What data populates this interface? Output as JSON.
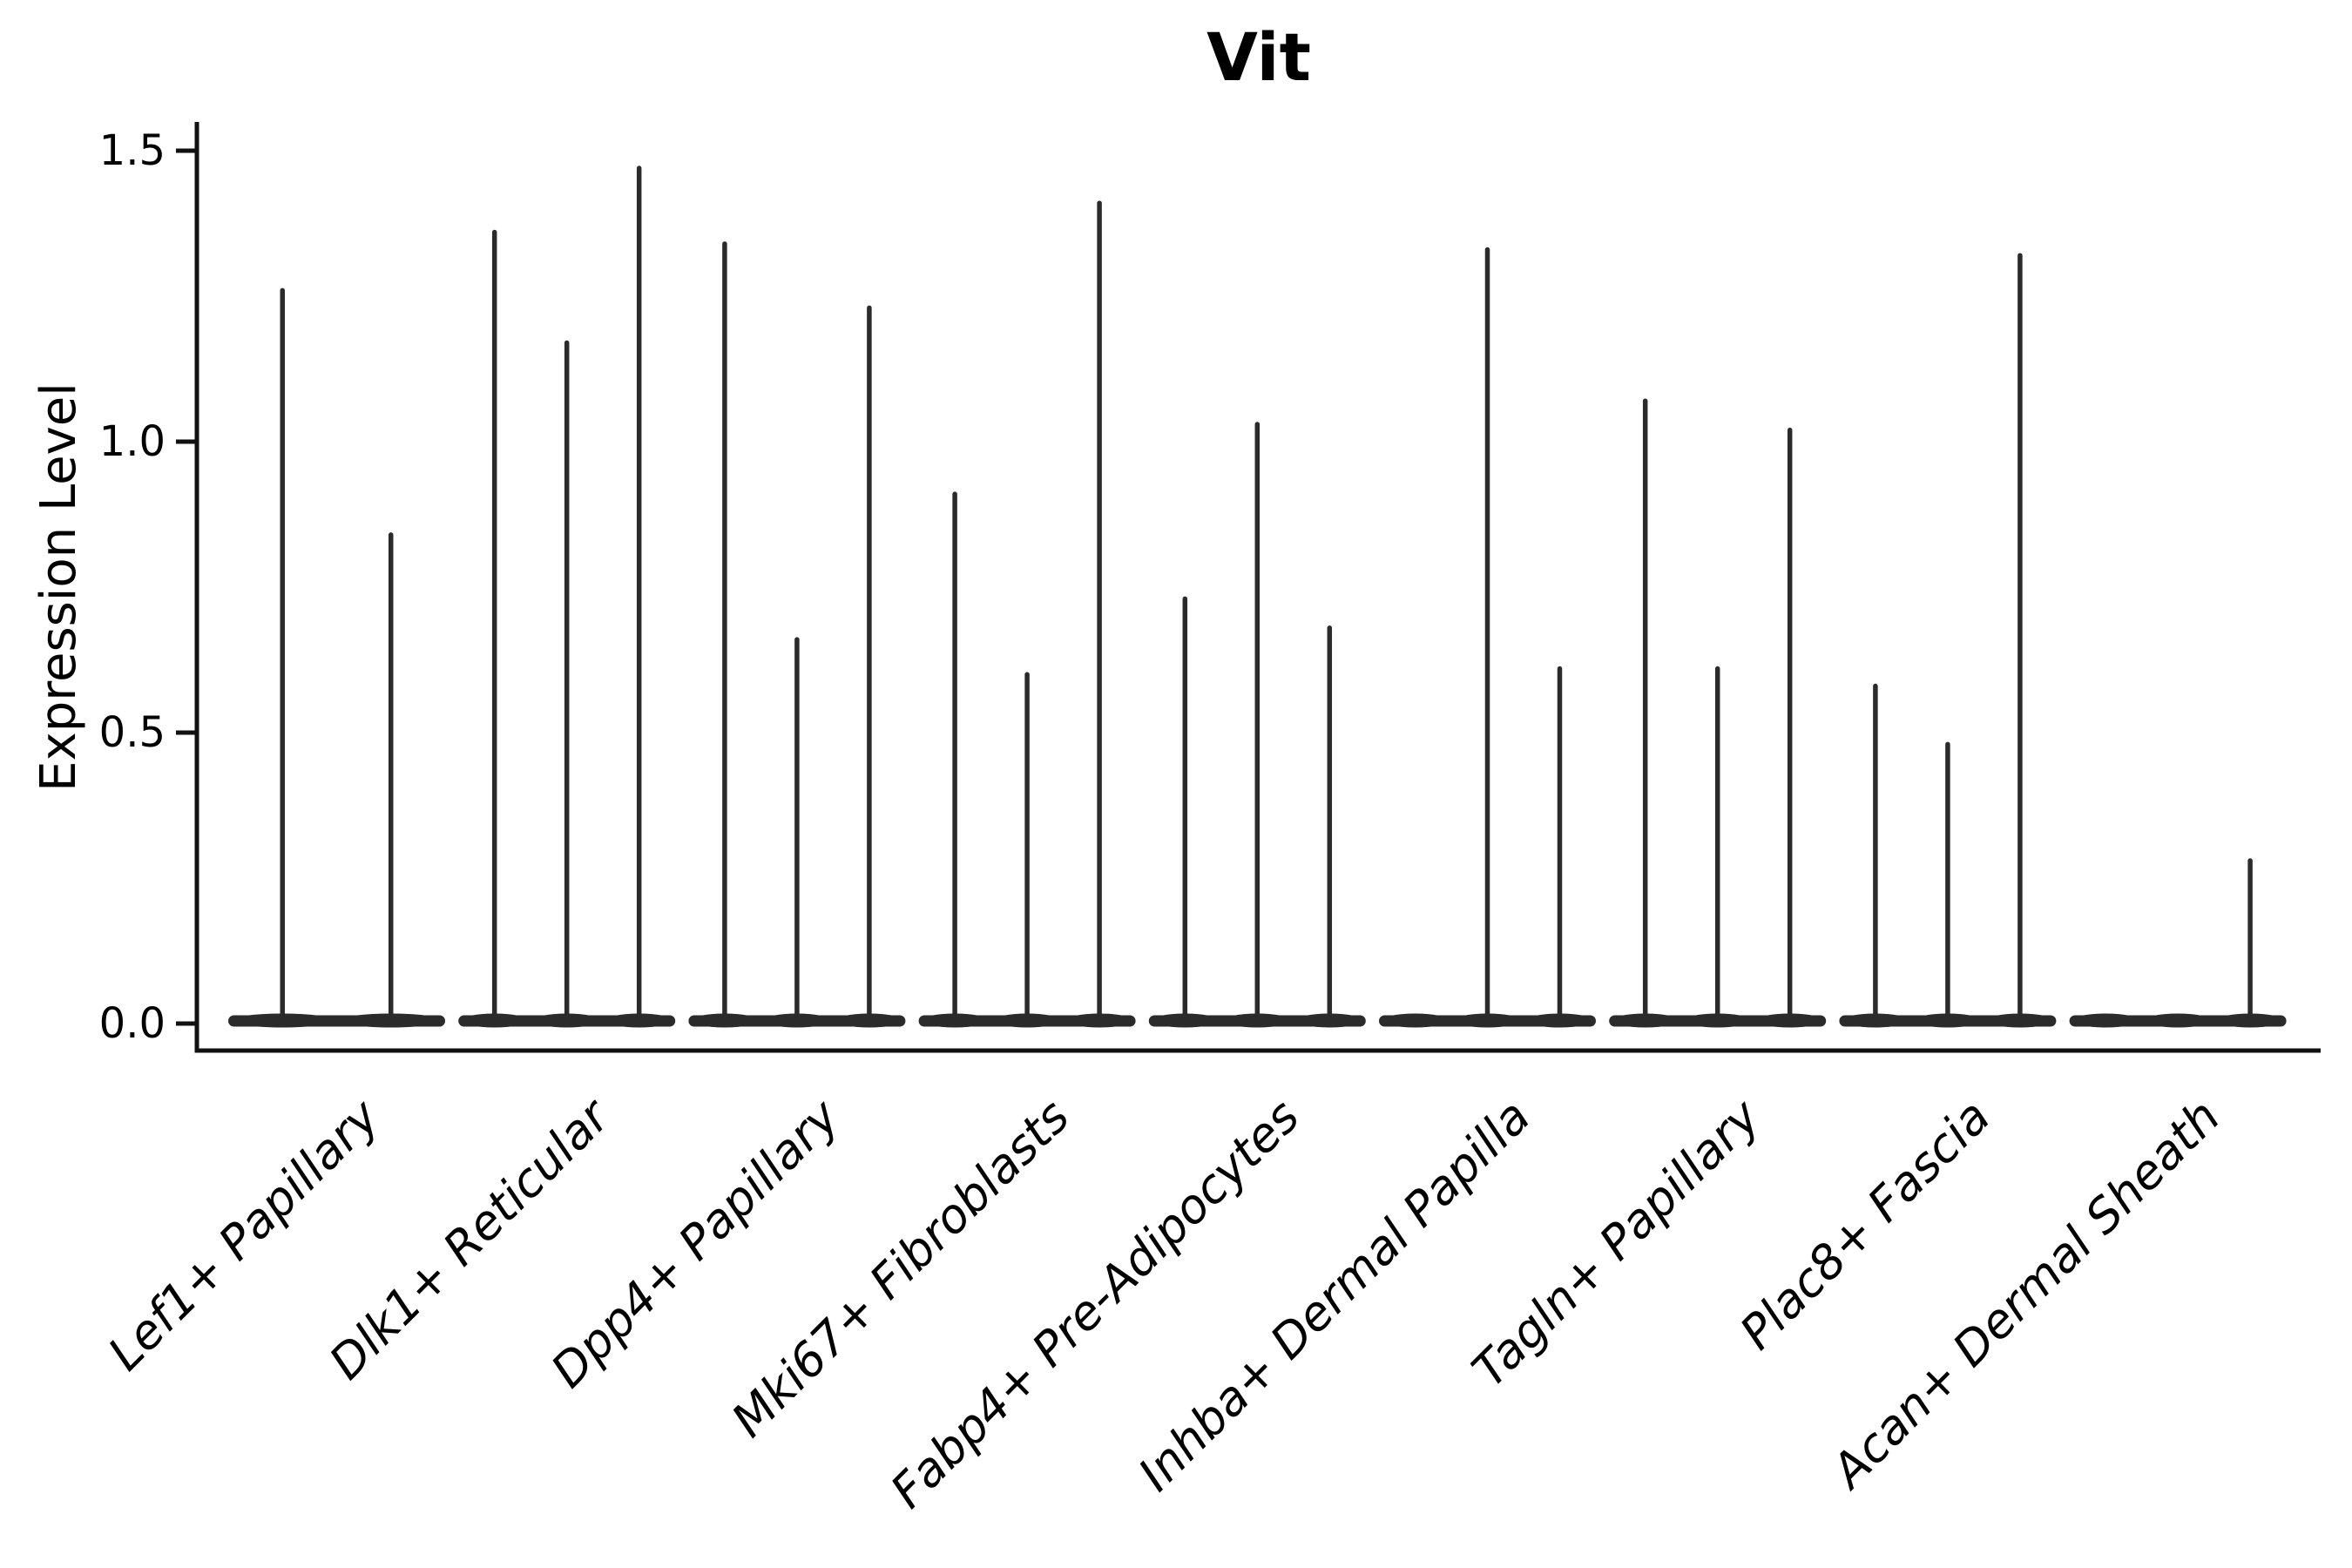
{
  "title": "Vit",
  "axes": {
    "ylabel": "Expression Level",
    "ytick_labels": [
      "0.0",
      "0.5",
      "1.0",
      "1.5"
    ]
  },
  "colors": {
    "violin": "#2b2b2b",
    "axis": "#111111",
    "text": "#000000",
    "background": "#ffffff"
  },
  "chart_data": {
    "type": "violin",
    "title": "Vit",
    "xlabel": "",
    "ylabel": "Expression Level",
    "ylim": [
      0,
      1.5
    ],
    "yticks": [
      0.0,
      0.5,
      1.0,
      1.5
    ],
    "ytick_labels": [
      "0.0",
      "0.5",
      "1.0",
      "1.5"
    ],
    "grid": false,
    "legend": "none",
    "description": "Zero-inflated expression violins: each violin is a wide flat base at 0 with a thin spike up to its maximum expression value.",
    "categories": [
      "Lef1+ Papillary",
      "Dlk1+ Reticular",
      "Dpp4+ Papillary",
      "Mki67+ Fibroblasts",
      "Fabp4+ Pre-Adipocytes",
      "Inhba+ Dermal Papilla",
      "Tagln+ Papillary",
      "Plac8+ Fascia",
      "Acan+ Dermal Sheath"
    ],
    "series": [
      {
        "category": "Lef1+ Papillary",
        "violin_max": [
          1.26,
          0.84
        ]
      },
      {
        "category": "Dlk1+ Reticular",
        "violin_max": [
          1.36,
          1.17,
          1.47
        ]
      },
      {
        "category": "Dpp4+ Papillary",
        "violin_max": [
          1.34,
          0.66,
          1.23
        ]
      },
      {
        "category": "Mki67+ Fibroblasts",
        "violin_max": [
          0.91,
          0.6,
          1.41
        ]
      },
      {
        "category": "Fabp4+ Pre-Adipocytes",
        "violin_max": [
          0.73,
          1.03,
          0.68
        ]
      },
      {
        "category": "Inhba+ Dermal Papilla",
        "violin_max": [
          0.0,
          1.33,
          0.61
        ]
      },
      {
        "category": "Tagln+ Papillary",
        "violin_max": [
          1.07,
          0.61,
          1.02
        ]
      },
      {
        "category": "Plac8+ Fascia",
        "violin_max": [
          0.58,
          0.48,
          1.32
        ]
      },
      {
        "category": "Acan+ Dermal Sheath",
        "violin_max": [
          0.0,
          0.0,
          0.28
        ]
      }
    ]
  }
}
